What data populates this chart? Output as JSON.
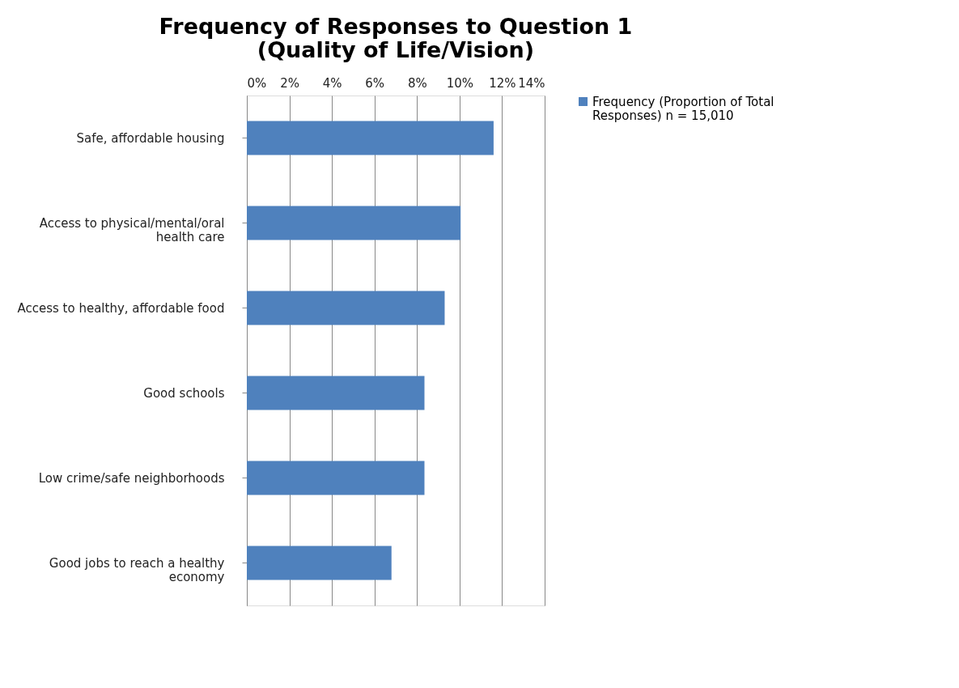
{
  "chart_data": {
    "type": "bar",
    "orientation": "horizontal",
    "title": "Frequency of Responses to Question 1 (Quality of Life/Vision)",
    "categories": [
      "Safe, affordable housing",
      "Access to physical/mental/oral health care",
      "Access to healthy, affordable food",
      "Good schools",
      "Low crime/safe neighborhoods",
      "Good jobs to reach a healthy economy"
    ],
    "series": [
      {
        "name": "Frequency (Proportion of Total Responses) n = 15,010",
        "color": "#4f81bd",
        "values": [
          11.6,
          10.05,
          9.3,
          8.35,
          8.35,
          6.8
        ]
      }
    ],
    "xlim": [
      0,
      14
    ],
    "xticks": [
      {
        "value": 0,
        "label": "0%"
      },
      {
        "value": 2,
        "label": "2%"
      },
      {
        "value": 4,
        "label": "4%"
      },
      {
        "value": 6,
        "label": "6%"
      },
      {
        "value": 8,
        "label": "8%"
      },
      {
        "value": 10,
        "label": "10%"
      },
      {
        "value": 12,
        "label": "12%"
      },
      {
        "value": 14,
        "label": "14%"
      }
    ],
    "grid": "x",
    "legend": "right"
  }
}
